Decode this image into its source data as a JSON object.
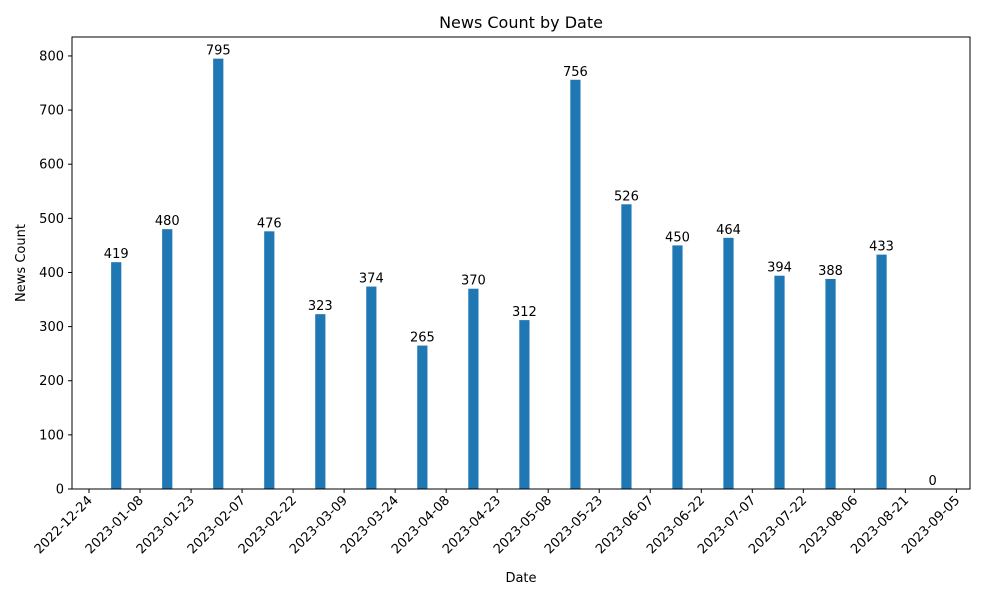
{
  "chart_data": {
    "type": "bar",
    "title": "News Count by Date",
    "xlabel": "Date",
    "ylabel": "News Count",
    "x_ticks": [
      "2022-12-24",
      "2023-01-08",
      "2023-01-23",
      "2023-02-07",
      "2023-02-22",
      "2023-03-09",
      "2023-03-24",
      "2023-04-08",
      "2023-04-23",
      "2023-05-08",
      "2023-05-23",
      "2023-06-07",
      "2023-06-22",
      "2023-07-07",
      "2023-07-22",
      "2023-08-06",
      "2023-08-21",
      "2023-09-05"
    ],
    "y_ticks": [
      0,
      100,
      200,
      300,
      400,
      500,
      600,
      700,
      800
    ],
    "ylim": [
      0,
      835
    ],
    "xlim": [
      "2022-12-19",
      "2023-09-09"
    ],
    "grid": false,
    "color": "#1f77b4",
    "bar_width_days": 3,
    "categories": [
      "2023-01-01",
      "2023-01-16",
      "2023-01-31",
      "2023-02-15",
      "2023-03-02",
      "2023-03-17",
      "2023-04-01",
      "2023-04-16",
      "2023-05-01",
      "2023-05-16",
      "2023-05-31",
      "2023-06-15",
      "2023-06-30",
      "2023-07-15",
      "2023-07-30",
      "2023-08-14",
      "2023-08-29"
    ],
    "values": [
      419,
      480,
      795,
      476,
      323,
      374,
      265,
      370,
      312,
      756,
      526,
      450,
      464,
      394,
      388,
      433,
      0
    ]
  }
}
